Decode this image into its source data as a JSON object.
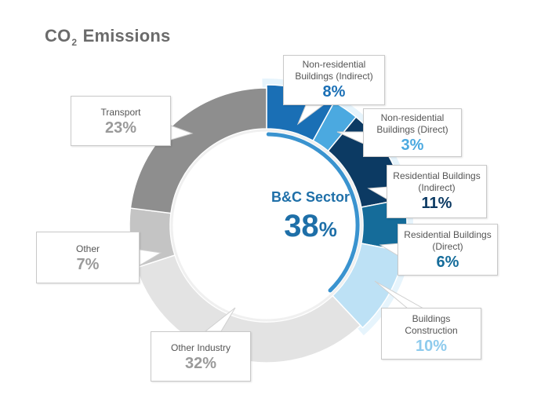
{
  "title": {
    "prefix": "CO",
    "subscript": "2",
    "suffix": " Emissions"
  },
  "center": {
    "label": "B&C Sector",
    "value": "38",
    "unit": "%"
  },
  "colors": {
    "nonres_indirect": "#1a6fb5",
    "nonres_direct": "#4ba9e0",
    "res_indirect": "#0c3a63",
    "res_direct": "#156c9a",
    "construction": "#bde1f5",
    "other_industry": "#e3e3e3",
    "other": "#c4c4c4",
    "transport": "#8e8e8e",
    "accent_arc": "#3a93cf"
  },
  "chart_data": {
    "type": "pie",
    "variant": "donut",
    "title": "CO2 Emissions",
    "slices": [
      {
        "label": "Non-residential Buildings (Indirect)",
        "value": 8
      },
      {
        "label": "Non-residential Buildings (Direct)",
        "value": 3
      },
      {
        "label": "Residential Buildings (Indirect)",
        "value": 11
      },
      {
        "label": "Residential Buildings (Direct)",
        "value": 6
      },
      {
        "label": "Buildings Construction",
        "value": 10
      },
      {
        "label": "Other Industry",
        "value": 32
      },
      {
        "label": "Other",
        "value": 7
      },
      {
        "label": "Transport",
        "value": 23
      }
    ],
    "highlight_group": {
      "label": "B&C Sector",
      "value": 38
    }
  },
  "callouts": {
    "nonres_indirect": {
      "line1": "Non-residential",
      "line2": "Buildings (Indirect)",
      "value": "8%"
    },
    "nonres_direct": {
      "line1": "Non-residential",
      "line2": "Buildings (Direct)",
      "value": "3%"
    },
    "res_indirect": {
      "line1": "Residential Buildings",
      "line2": "(Indirect)",
      "value": "11%"
    },
    "res_direct": {
      "line1": "Residential Buildings",
      "line2": "(Direct)",
      "value": "6%"
    },
    "construction": {
      "line1": "Buildings",
      "line2": "Construction",
      "value": "10%"
    },
    "other_industry": {
      "line1": "Other Industry",
      "value": "32%"
    },
    "other": {
      "line1": "Other",
      "value": "7%"
    },
    "transport": {
      "line1": "Transport",
      "value": "23%"
    }
  }
}
